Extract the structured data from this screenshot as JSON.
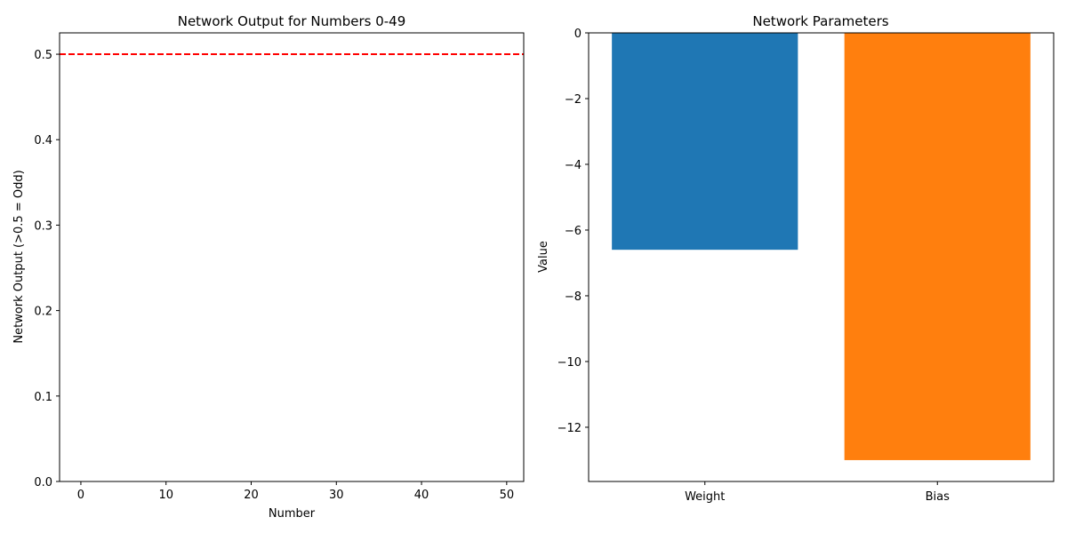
{
  "chart_data": [
    {
      "type": "line",
      "title": "Network Output for Numbers 0-49",
      "xlabel": "Number",
      "ylabel": "Network Output (>0.5 = Odd)",
      "xlim": [
        -2.5,
        52
      ],
      "ylim": [
        0,
        0.525
      ],
      "xticks": [
        0,
        10,
        20,
        30,
        40,
        50
      ],
      "xtick_labels": [
        "0",
        "10",
        "20",
        "30",
        "40",
        "50"
      ],
      "yticks": [
        0,
        0.1,
        0.2,
        0.3,
        0.4,
        0.5
      ],
      "ytick_labels": [
        "0.0",
        "0.1",
        "0.2",
        "0.3",
        "0.4",
        "0.5"
      ],
      "grid": false,
      "series": [
        {
          "values": []
        }
      ],
      "threshold": {
        "y": 0.5,
        "color": "#ff0000",
        "style": "dashed"
      }
    },
    {
      "type": "bar",
      "title": "Network Parameters",
      "xlabel": "",
      "ylabel": "Value",
      "categories": [
        "Weight",
        "Bias"
      ],
      "values": [
        -6.6,
        -13.0
      ],
      "colors": [
        "#1f77b4",
        "#ff7f0e"
      ],
      "ylim": [
        -13.65,
        0
      ],
      "yticks": [
        0,
        -2,
        -4,
        -6,
        -8,
        -10,
        -12
      ],
      "ytick_labels": [
        "0",
        "−2",
        "−4",
        "−6",
        "−8",
        "−10",
        "−12"
      ],
      "grid": false
    }
  ]
}
